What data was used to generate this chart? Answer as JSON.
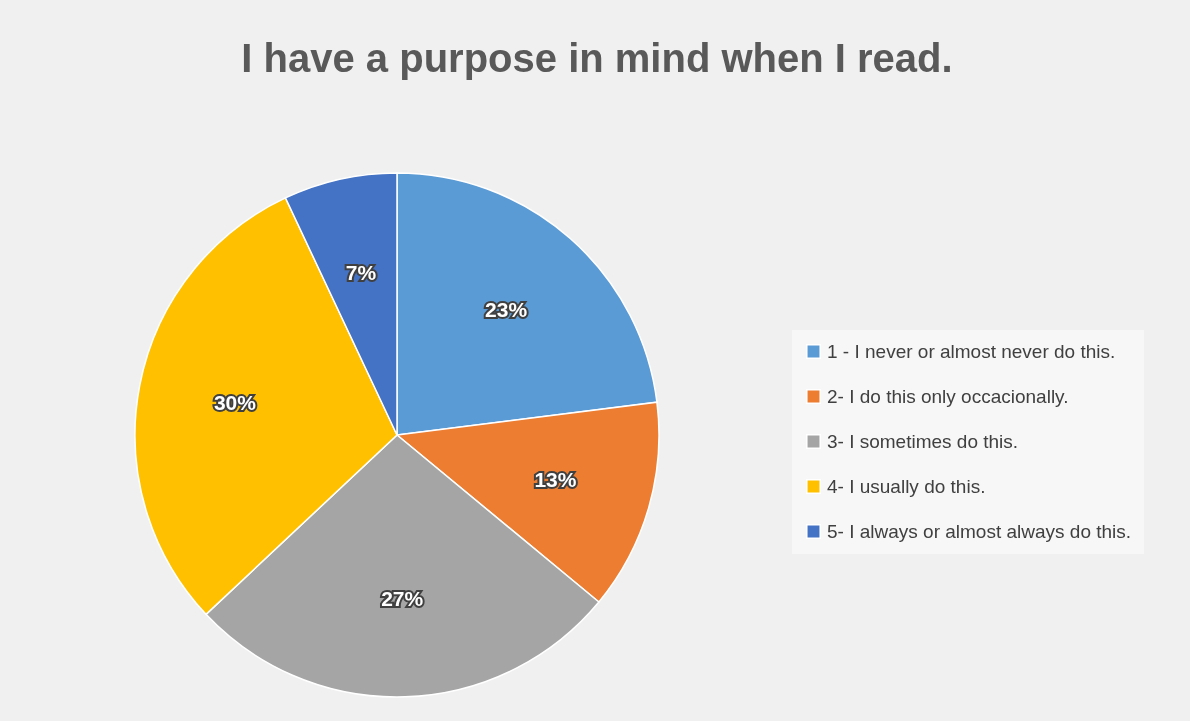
{
  "chart_data": {
    "type": "pie",
    "title": "I have a purpose in mind when I read.",
    "categories": [
      "1 - I never or almost never do this.",
      "2- I do this only occacionally.",
      "3- I sometimes  do this.",
      "4- I usually do this.",
      "5- I always or almost always do this."
    ],
    "values": [
      23,
      13,
      27,
      30,
      7
    ],
    "colors": [
      "#5b9bd5",
      "#ed7d31",
      "#a5a5a5",
      "#ffc000",
      "#4472c4"
    ],
    "value_labels": [
      "23%",
      "13%",
      "27%",
      "30%",
      "7%"
    ],
    "legend": "right"
  }
}
